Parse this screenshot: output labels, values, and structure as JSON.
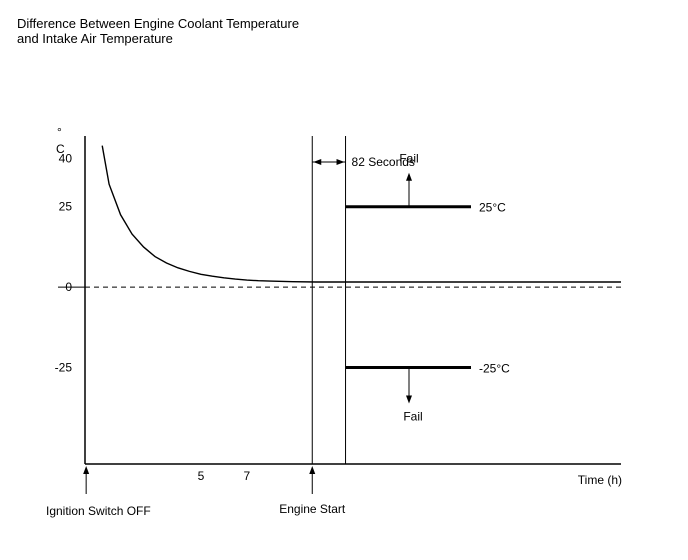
{
  "chart_data": {
    "type": "line",
    "title_line1": "Difference Between Engine Coolant Temperature",
    "title_line2": "and Intake Air Temperature",
    "ylabel_degree": "°",
    "ylabel_unit": "C",
    "xlabel": "Time (h)",
    "yticks": [
      {
        "value": 40,
        "label": "40"
      },
      {
        "value": 25,
        "label": "25"
      },
      {
        "value": 0,
        "label": "0"
      },
      {
        "value": -25,
        "label": "-25"
      }
    ],
    "xticks": [
      {
        "value": 5,
        "label": "5"
      },
      {
        "value": 7,
        "label": "7"
      }
    ],
    "series": [
      {
        "x": [
          0.7,
          1.0,
          1.5,
          2.0,
          2.5,
          3.0,
          3.5,
          4.0,
          4.5,
          5.0,
          5.5,
          6.0,
          6.5,
          7.0,
          7.5,
          8.0,
          9.0,
          10.0,
          12.0,
          15.0,
          19.0,
          23.3
        ],
        "y": [
          44,
          32,
          22.5,
          16.5,
          12.5,
          9.5,
          7.5,
          6.0,
          4.9,
          4.0,
          3.4,
          2.9,
          2.5,
          2.2,
          2.0,
          1.9,
          1.7,
          1.6,
          1.6,
          1.6,
          1.6,
          1.6
        ]
      }
    ],
    "zero_line": {
      "y": 0,
      "style": "dashed"
    },
    "events": {
      "ignition_off": {
        "x": 0,
        "label": "Ignition Switch OFF"
      },
      "engine_start": {
        "x": 9.85,
        "label": "Engine Start"
      },
      "check_start": {
        "x": 11.3
      }
    },
    "interval_label": "82 Seconds",
    "thresholds": [
      {
        "y": 25,
        "label": "25°C",
        "fail_label": "Fail",
        "fail_direction": "up"
      },
      {
        "y": -25,
        "label": "-25°C",
        "fail_label": "Fail",
        "fail_direction": "down"
      }
    ],
    "xlim": [
      -0.05,
      23.3
    ],
    "ylim": [
      -55,
      47
    ]
  }
}
